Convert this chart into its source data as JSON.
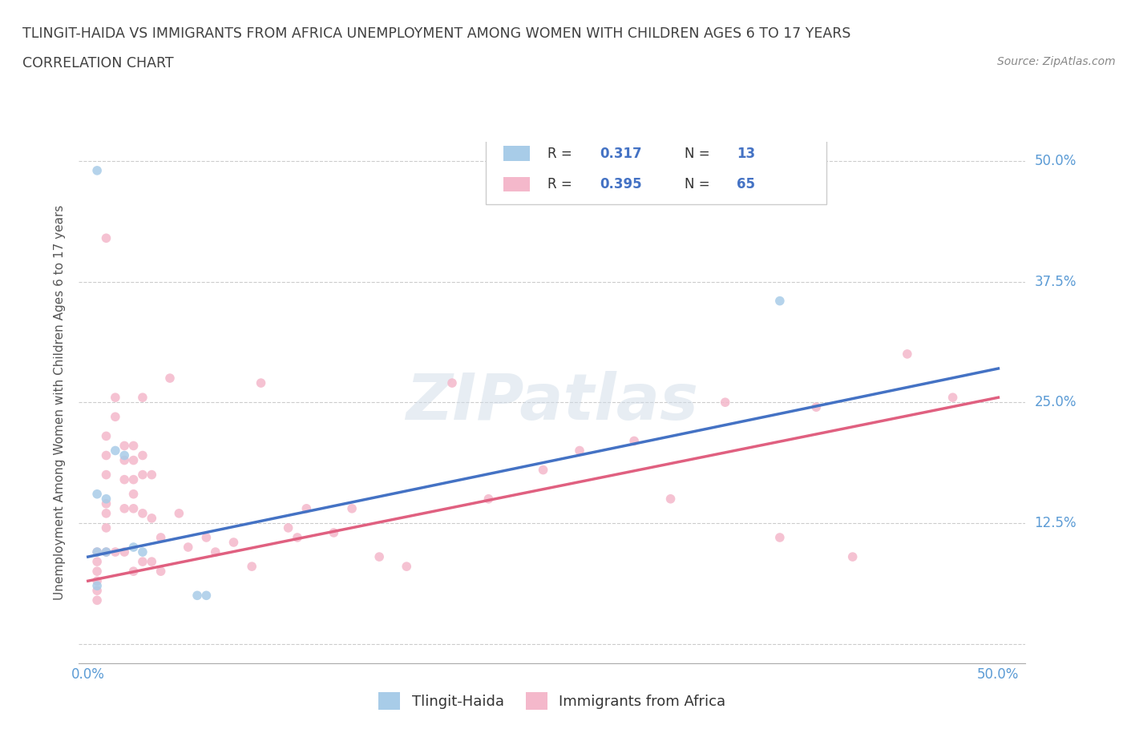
{
  "title_line1": "TLINGIT-HAIDA VS IMMIGRANTS FROM AFRICA UNEMPLOYMENT AMONG WOMEN WITH CHILDREN AGES 6 TO 17 YEARS",
  "title_line2": "CORRELATION CHART",
  "source_text": "Source: ZipAtlas.com",
  "ylabel": "Unemployment Among Women with Children Ages 6 to 17 years",
  "xlim": [
    -0.005,
    0.515
  ],
  "ylim": [
    -0.02,
    0.52
  ],
  "watermark": "ZIPatlas",
  "color_blue": "#a8cce8",
  "color_pink": "#f4b8cb",
  "line_color_blue": "#4472c4",
  "line_color_pink": "#e06080",
  "tlingit_x": [
    0.005,
    0.005,
    0.005,
    0.01,
    0.01,
    0.015,
    0.02,
    0.025,
    0.03,
    0.06,
    0.065,
    0.38,
    0.005
  ],
  "tlingit_y": [
    0.49,
    0.155,
    0.095,
    0.095,
    0.15,
    0.2,
    0.195,
    0.1,
    0.095,
    0.05,
    0.05,
    0.355,
    0.06
  ],
  "africa_x": [
    0.005,
    0.005,
    0.005,
    0.005,
    0.005,
    0.005,
    0.01,
    0.01,
    0.01,
    0.01,
    0.01,
    0.01,
    0.01,
    0.01,
    0.015,
    0.015,
    0.015,
    0.02,
    0.02,
    0.02,
    0.02,
    0.02,
    0.025,
    0.025,
    0.025,
    0.025,
    0.025,
    0.025,
    0.03,
    0.03,
    0.03,
    0.03,
    0.03,
    0.035,
    0.035,
    0.035,
    0.04,
    0.04,
    0.045,
    0.05,
    0.055,
    0.065,
    0.07,
    0.08,
    0.09,
    0.095,
    0.11,
    0.115,
    0.12,
    0.135,
    0.145,
    0.16,
    0.175,
    0.2,
    0.22,
    0.25,
    0.27,
    0.3,
    0.32,
    0.35,
    0.38,
    0.4,
    0.42,
    0.45,
    0.475
  ],
  "africa_y": [
    0.095,
    0.085,
    0.075,
    0.065,
    0.055,
    0.045,
    0.42,
    0.215,
    0.195,
    0.175,
    0.145,
    0.135,
    0.12,
    0.095,
    0.255,
    0.235,
    0.095,
    0.205,
    0.19,
    0.17,
    0.14,
    0.095,
    0.205,
    0.19,
    0.17,
    0.155,
    0.14,
    0.075,
    0.255,
    0.195,
    0.175,
    0.135,
    0.085,
    0.175,
    0.13,
    0.085,
    0.11,
    0.075,
    0.275,
    0.135,
    0.1,
    0.11,
    0.095,
    0.105,
    0.08,
    0.27,
    0.12,
    0.11,
    0.14,
    0.115,
    0.14,
    0.09,
    0.08,
    0.27,
    0.15,
    0.18,
    0.2,
    0.21,
    0.15,
    0.25,
    0.11,
    0.245,
    0.09,
    0.3,
    0.255
  ],
  "tlingit_trend_x": [
    0.0,
    0.5
  ],
  "tlingit_trend_y": [
    0.09,
    0.285
  ],
  "africa_trend_x": [
    0.0,
    0.5
  ],
  "africa_trend_y": [
    0.065,
    0.255
  ],
  "grid_color": "#cccccc",
  "bg_color": "#ffffff",
  "title_color": "#404040",
  "tick_color": "#5b9bd5",
  "dot_size": 70,
  "dot_alpha": 0.85
}
